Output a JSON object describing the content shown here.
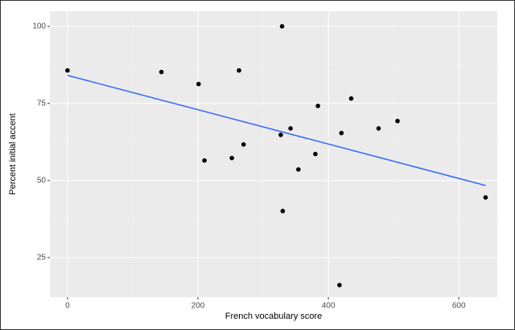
{
  "chart_data": {
    "type": "scatter",
    "x_label": "French vocabulary score",
    "y_label": "Percent initial accent",
    "x": [
      0,
      144,
      201,
      263,
      329,
      210,
      252,
      270,
      327,
      342,
      354,
      330,
      384,
      380,
      435,
      420,
      477,
      506,
      417,
      641
    ],
    "values": [
      85.7,
      85.2,
      81.3,
      85.7,
      100,
      56.5,
      57.3,
      61.7,
      64.8,
      66.9,
      53.6,
      40.1,
      74.2,
      58.6,
      76.6,
      65.4,
      66.9,
      69.3,
      16.1,
      44.5
    ],
    "color": "#000000",
    "trend": {
      "x": [
        0,
        641
      ],
      "values": [
        84.1,
        48.4
      ],
      "color": "#3366ff"
    },
    "xlim": [
      -27,
      659
    ],
    "ylim": [
      12.2,
      104.9
    ],
    "xticks": [
      0,
      200,
      400,
      600
    ],
    "yticks": [
      25,
      50,
      75,
      100
    ],
    "xminor": [
      100,
      300,
      500
    ],
    "yminor": [
      37.5,
      62.5,
      87.5
    ],
    "grid": true
  }
}
